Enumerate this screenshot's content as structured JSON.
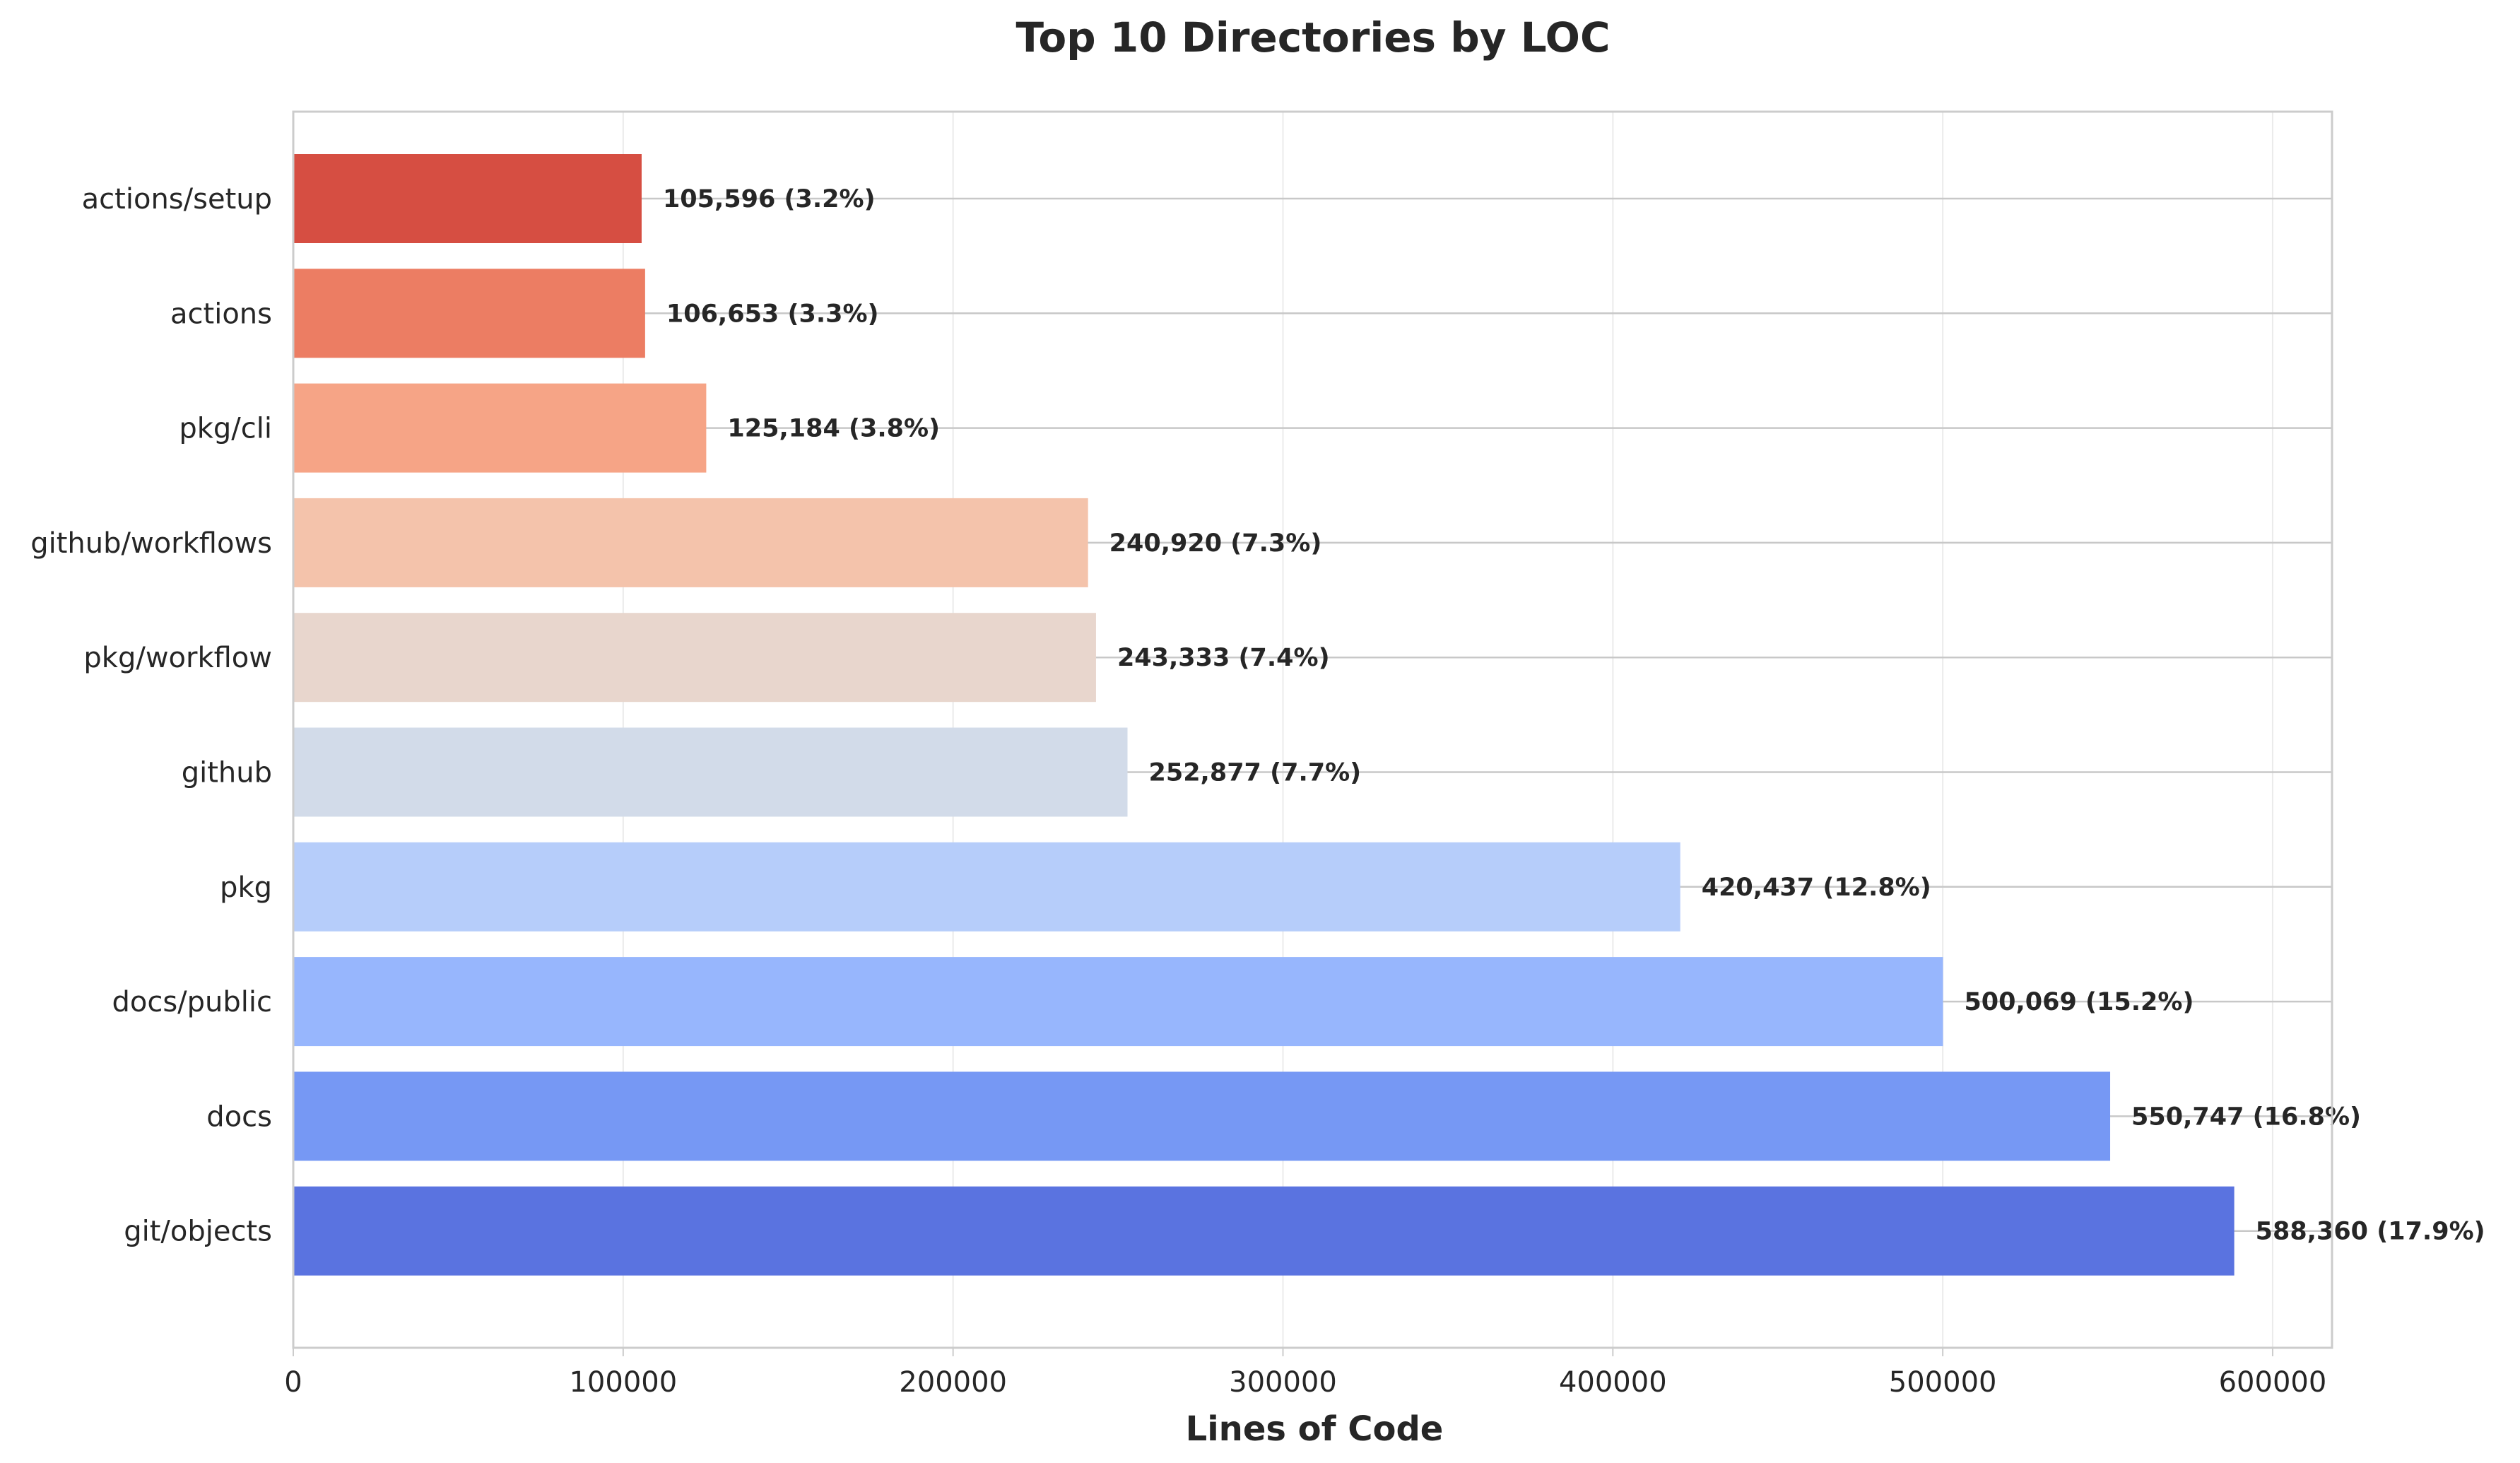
{
  "chart_data": {
    "type": "bar",
    "orientation": "horizontal",
    "title": "Top 10 Directories by LOC",
    "xlabel": "Lines of Code",
    "ylabel": "",
    "xlim": [
      0,
      618000
    ],
    "xticks": [
      0,
      100000,
      200000,
      300000,
      400000,
      500000,
      600000
    ],
    "xtick_labels": [
      "0",
      "100000",
      "200000",
      "300000",
      "400000",
      "500000",
      "600000"
    ],
    "grid": true,
    "categories": [
      "git/objects",
      "docs",
      "docs/public",
      "pkg",
      "github",
      "pkg/workflow",
      "github/workflows",
      "pkg/cli",
      "actions",
      "actions/setup"
    ],
    "values": [
      588360,
      550747,
      500069,
      420437,
      252877,
      243333,
      240920,
      125184,
      106653,
      105596
    ],
    "value_labels": [
      "588,360 (17.9%)",
      "550,747 (16.8%)",
      "500,069 (15.2%)",
      "420,437 (12.8%)",
      "252,877 (7.7%)",
      "243,333 (7.4%)",
      "240,920 (7.3%)",
      "125,184 (3.8%)",
      "106,653 (3.3%)",
      "105,596 (3.2%)"
    ],
    "colors": [
      "#5a73e0",
      "#7698f4",
      "#97b6fd",
      "#b6cdfa",
      "#d2dbe9",
      "#e8d6cd",
      "#f4c3ab",
      "#f6a486",
      "#ec7d63",
      "#d64e42"
    ],
    "axis_color": "#cccccc",
    "grid_color": "#ebebeb"
  }
}
